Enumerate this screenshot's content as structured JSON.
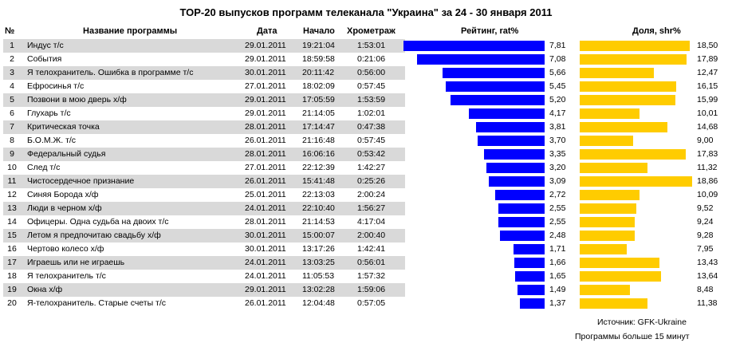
{
  "title": "ТОР-20 выпусков программ телеканала \"Украина\" за  24 - 30 января 2011",
  "columns": {
    "num": "№",
    "name": "Название программы",
    "date": "Дата",
    "start": "Начало",
    "duration": "Хрометраж",
    "rating": "Рейтинг, rat%",
    "share": "Доля, shr%"
  },
  "footer": {
    "source": "Источник: GFK-Ukraine",
    "note": "Программы больше 15 минут"
  },
  "colors": {
    "rating_bar": "#0000ff",
    "share_bar": "#ffcc00",
    "alt_row": "#d9d9d9"
  },
  "rows": [
    {
      "num": "1",
      "name": "Индус т/с",
      "date": "29.01.2011",
      "start": "19:21:04",
      "duration": "1:53:01",
      "rating": "7,81",
      "share": "18,50"
    },
    {
      "num": "2",
      "name": "События",
      "date": "29.01.2011",
      "start": "18:59:58",
      "duration": "0:21:06",
      "rating": "7,08",
      "share": "17,89"
    },
    {
      "num": "3",
      "name": "Я телохранитель. Ошибка в программе т/с",
      "date": "30.01.2011",
      "start": "20:11:42",
      "duration": "0:56:00",
      "rating": "5,66",
      "share": "12,47"
    },
    {
      "num": "4",
      "name": "Ефросинья т/с",
      "date": "27.01.2011",
      "start": "18:02:09",
      "duration": "0:57:45",
      "rating": "5,45",
      "share": "16,15"
    },
    {
      "num": "5",
      "name": "Позвони в мою дверь х/ф",
      "date": "29.01.2011",
      "start": "17:05:59",
      "duration": "1:53:59",
      "rating": "5,20",
      "share": "15,99"
    },
    {
      "num": "6",
      "name": "Глухарь т/с",
      "date": "29.01.2011",
      "start": "21:14:05",
      "duration": "1:02:01",
      "rating": "4,17",
      "share": "10,01"
    },
    {
      "num": "7",
      "name": "Критическая точка",
      "date": "28.01.2011",
      "start": "17:14:47",
      "duration": "0:47:38",
      "rating": "3,81",
      "share": "14,68"
    },
    {
      "num": "8",
      "name": "Б.О.М.Ж. т/с",
      "date": "26.01.2011",
      "start": "21:16:48",
      "duration": "0:57:45",
      "rating": "3,70",
      "share": "9,00"
    },
    {
      "num": "9",
      "name": "Федеральный судья",
      "date": "28.01.2011",
      "start": "16:06:16",
      "duration": "0:53:42",
      "rating": "3,35",
      "share": "17,83"
    },
    {
      "num": "10",
      "name": "След т/с",
      "date": "27.01.2011",
      "start": "22:12:39",
      "duration": "1:42:27",
      "rating": "3,20",
      "share": "11,32"
    },
    {
      "num": "11",
      "name": "Чистосердечное признание",
      "date": "26.01.2011",
      "start": "15:41:48",
      "duration": "0:25:26",
      "rating": "3,09",
      "share": "18,86"
    },
    {
      "num": "12",
      "name": "Синяя Борода х/ф",
      "date": "25.01.2011",
      "start": "22:13:03",
      "duration": "2:00:24",
      "rating": "2,72",
      "share": "10,09"
    },
    {
      "num": "13",
      "name": "Люди в черном х/ф",
      "date": "24.01.2011",
      "start": "22:10:40",
      "duration": "1:56:27",
      "rating": "2,55",
      "share": "9,52"
    },
    {
      "num": "14",
      "name": "Офицеры. Одна судьба на двоих т/с",
      "date": "28.01.2011",
      "start": "21:14:53",
      "duration": "4:17:04",
      "rating": "2,55",
      "share": "9,24"
    },
    {
      "num": "15",
      "name": "Летом я предпочитаю свадьбу х/ф",
      "date": "30.01.2011",
      "start": "15:00:07",
      "duration": "2:00:40",
      "rating": "2,48",
      "share": "9,28"
    },
    {
      "num": "16",
      "name": "Чертово колесо х/ф",
      "date": "30.01.2011",
      "start": "13:17:26",
      "duration": "1:42:41",
      "rating": "1,71",
      "share": "7,95"
    },
    {
      "num": "17",
      "name": "Играешь или не играешь",
      "date": "24.01.2011",
      "start": "13:03:25",
      "duration": "0:56:01",
      "rating": "1,66",
      "share": "13,43"
    },
    {
      "num": "18",
      "name": "Я телохранитель т/с",
      "date": "24.01.2011",
      "start": "11:05:53",
      "duration": "1:57:32",
      "rating": "1,65",
      "share": "13,64"
    },
    {
      "num": "19",
      "name": "Окна х/ф",
      "date": "29.01.2011",
      "start": "13:02:28",
      "duration": "1:59:06",
      "rating": "1,49",
      "share": "8,48"
    },
    {
      "num": "20",
      "name": "Я-телохранитель. Старые счеты т/с",
      "date": "26.01.2011",
      "start": "12:04:48",
      "duration": "0:57:05",
      "rating": "1,37",
      "share": "11,38"
    }
  ],
  "chart_data": {
    "type": "bar",
    "title": "ТОР-20 выпусков программ телеканала \"Украина\" за  24 - 30 января 2011",
    "categories": [
      "Индус т/с",
      "События",
      "Я телохранитель. Ошибка в программе т/с",
      "Ефросинья т/с",
      "Позвони в мою дверь х/ф",
      "Глухарь т/с",
      "Критическая точка",
      "Б.О.М.Ж. т/с",
      "Федеральный судья",
      "След т/с",
      "Чистосердечное признание",
      "Синяя Борода х/ф",
      "Люди в черном х/ф",
      "Офицеры. Одна судьба на двоих т/с",
      "Летом я предпочитаю свадьбу х/ф",
      "Чертово колесо х/ф",
      "Играешь или не играешь",
      "Я телохранитель т/с",
      "Окна х/ф",
      "Я-телохранитель. Старые счеты т/с"
    ],
    "series": [
      {
        "name": "Рейтинг, rat%",
        "values": [
          7.81,
          7.08,
          5.66,
          5.45,
          5.2,
          4.17,
          3.81,
          3.7,
          3.35,
          3.2,
          3.09,
          2.72,
          2.55,
          2.55,
          2.48,
          1.71,
          1.66,
          1.65,
          1.49,
          1.37
        ]
      },
      {
        "name": "Доля, shr%",
        "values": [
          18.5,
          17.89,
          12.47,
          16.15,
          15.99,
          10.01,
          14.68,
          9.0,
          17.83,
          11.32,
          18.86,
          10.09,
          9.52,
          9.24,
          9.28,
          7.95,
          13.43,
          13.64,
          8.48,
          11.38
        ]
      }
    ],
    "grid": false
  }
}
